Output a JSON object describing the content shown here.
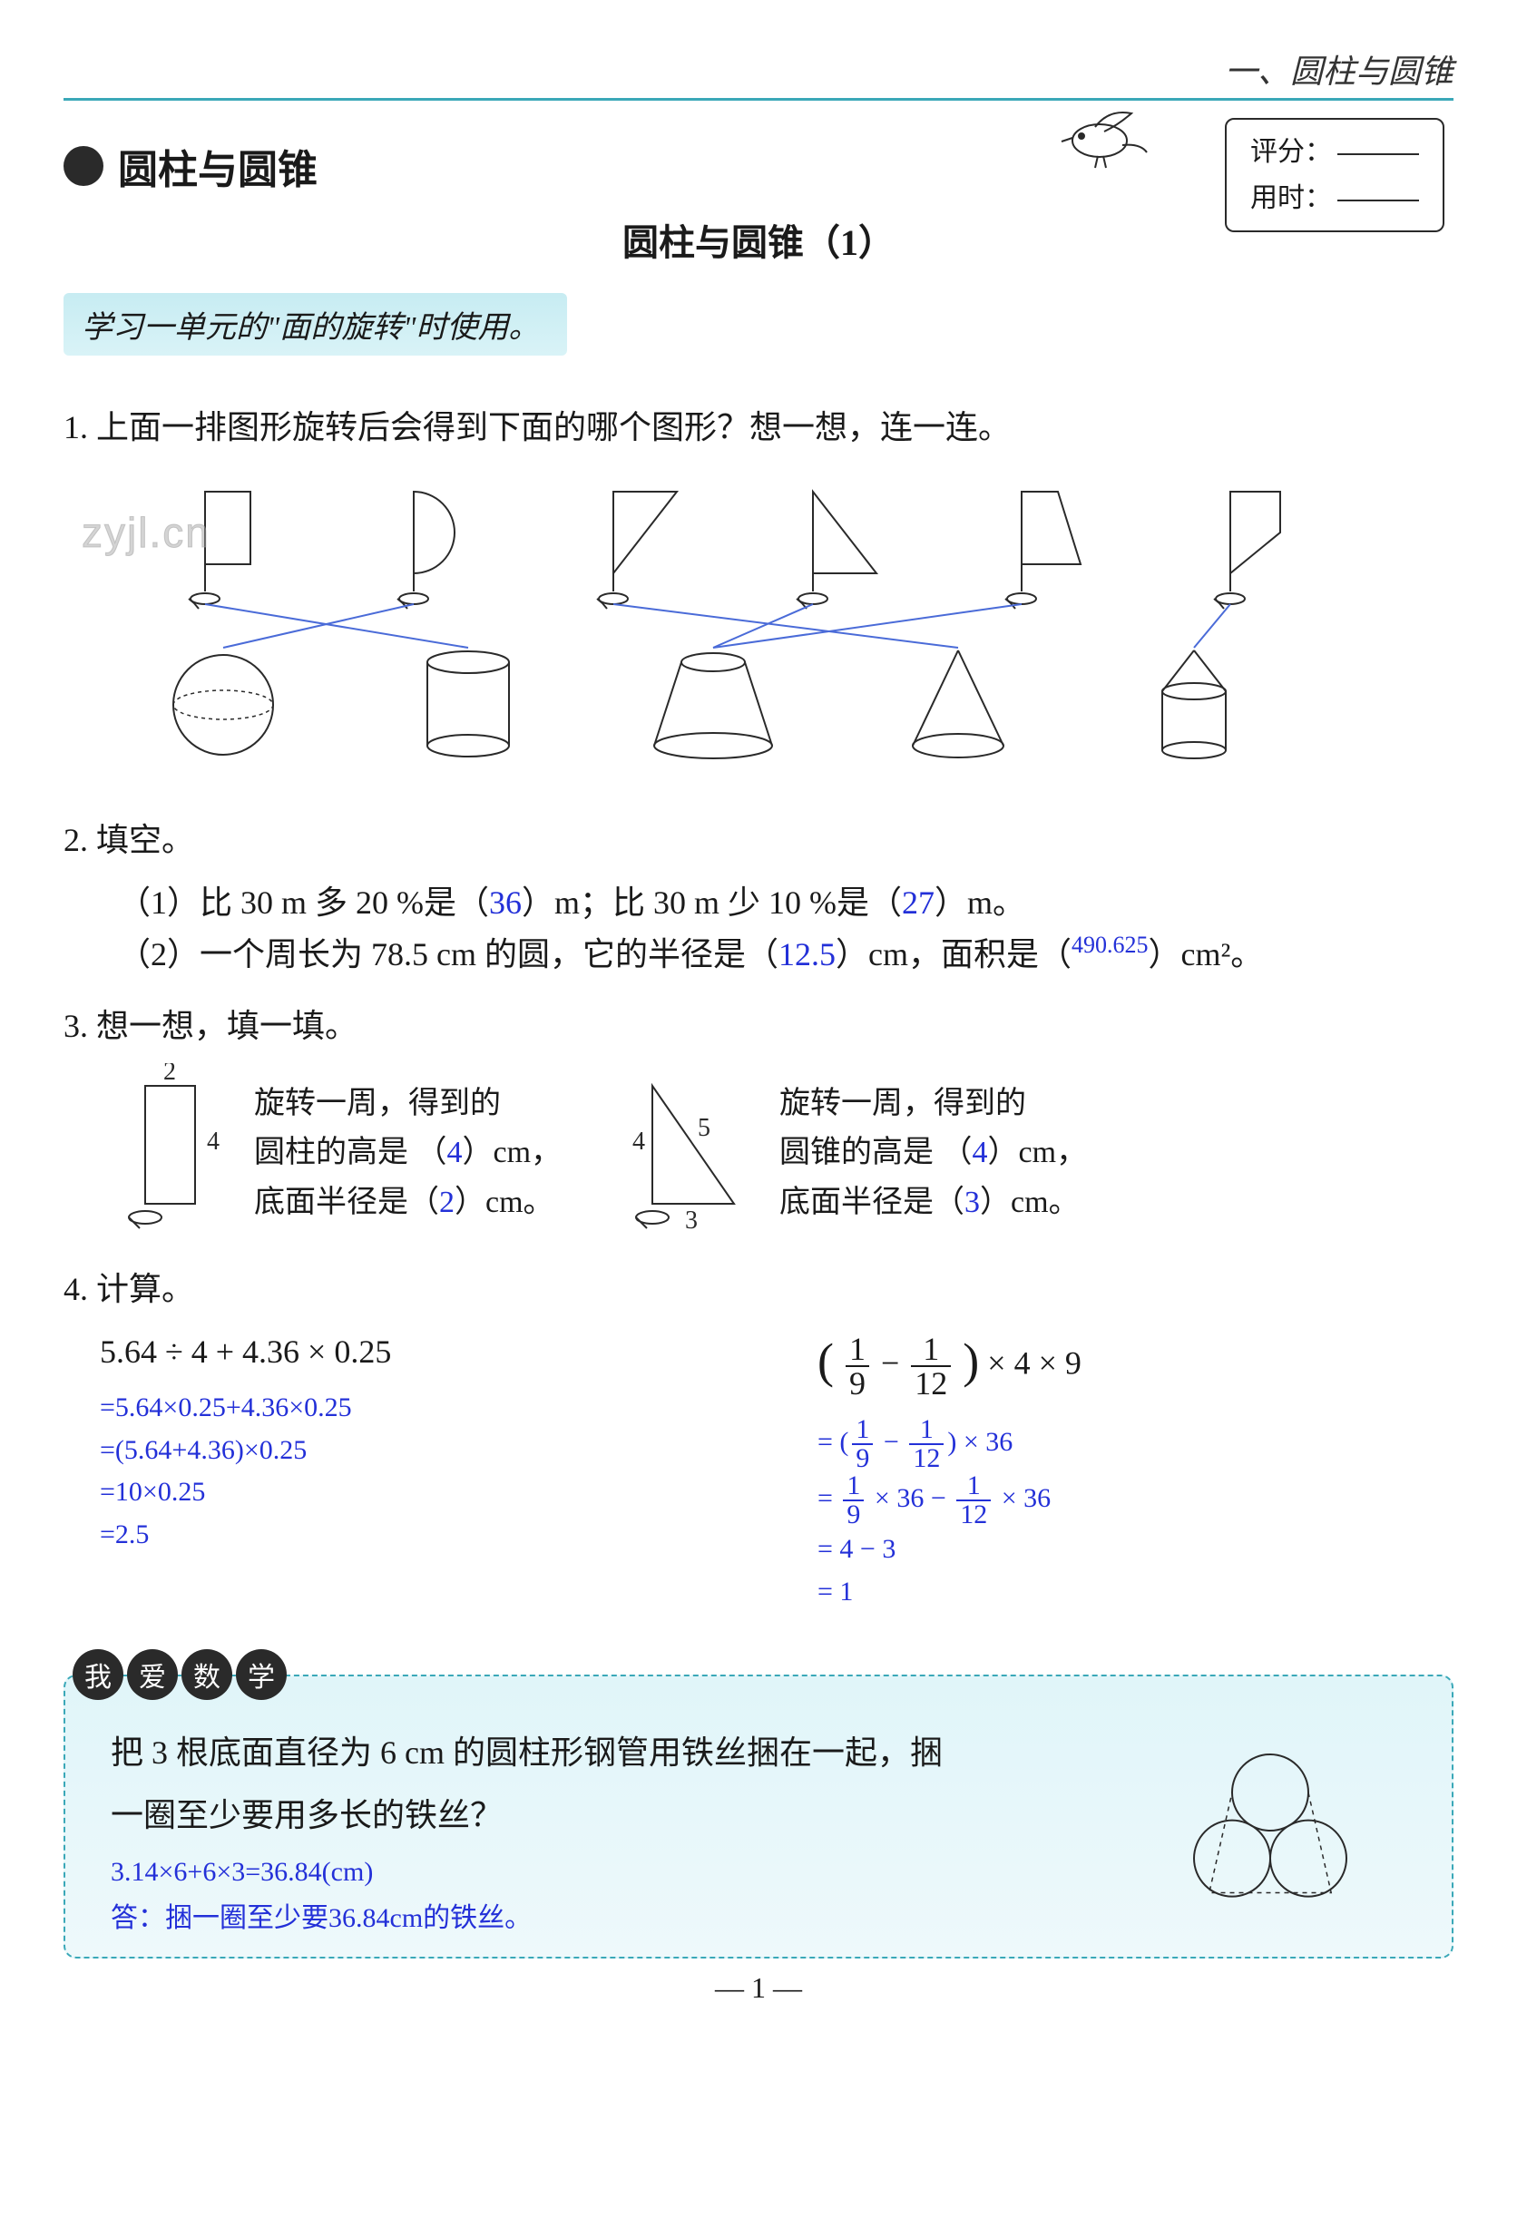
{
  "header": {
    "running": "一、圆柱与圆锥"
  },
  "chapter": {
    "title": "圆柱与圆锥"
  },
  "subtitle": "圆柱与圆锥（1）",
  "scorebox": {
    "score_label": "评分：",
    "time_label": "用时："
  },
  "tip": "学习一单元的\"面的旋转\"时使用。",
  "q1": {
    "text": "1. 上面一排图形旋转后会得到下面的哪个图形？想一想，连一连。"
  },
  "watermark": "zyjl.cn",
  "diagram1": {
    "top_count": 6,
    "bottom_count": 5,
    "stroke": "#2a2a2a",
    "line_color": "#4a6bd8",
    "connections": [
      {
        "from": 0,
        "to": 1
      },
      {
        "from": 1,
        "to": 0
      },
      {
        "from": 2,
        "to": 3
      },
      {
        "from": 3,
        "to": 2
      },
      {
        "from": 4,
        "to": 2
      },
      {
        "from": 5,
        "to": 4
      }
    ]
  },
  "q2": {
    "title": "2. 填空。",
    "line1_a": "（1）比 30 m 多 20 %是（",
    "ans1a": "36",
    "line1_b": "）m；比 30 m 少 10 %是（",
    "ans1b": "27",
    "line1_c": "）m。",
    "line2_a": "（2）一个周长为 78.5 cm 的圆，它的半径是（",
    "ans2a": "12.5",
    "line2_b": "）cm，面积是（",
    "ans2b": "490.625",
    "line2_c": "）cm²。"
  },
  "q3": {
    "title": "3. 想一想，填一填。",
    "rect": {
      "w": "2",
      "h": "4"
    },
    "left_text_a": "旋转一周，得到的",
    "left_text_b": "圆柱的高是 （",
    "left_ans_h": "4",
    "left_text_c": "）cm，",
    "left_text_d": "底面半径是（",
    "left_ans_r": "2",
    "left_text_e": "）cm。",
    "tri": {
      "h": "4",
      "b": "3",
      "hyp": "5"
    },
    "right_text_a": "旋转一周，得到的",
    "right_text_b": "圆锥的高是 （",
    "right_ans_h": "4",
    "right_text_c": "）cm，",
    "right_text_d": "底面半径是（",
    "right_ans_r": "3",
    "right_text_e": "）cm。"
  },
  "q4": {
    "title": "4. 计算。",
    "left": {
      "expr": "5.64 ÷ 4 + 4.36 × 0.25",
      "steps": [
        "=5.64×0.25+4.36×0.25",
        "=(5.64+4.36)×0.25",
        "=10×0.25",
        "=2.5"
      ]
    },
    "right": {
      "f1n": "1",
      "f1d": "9",
      "f2n": "1",
      "f2d": "12",
      "tail": " × 4 × 9",
      "s1_tail": " × 36",
      "s2_mid": " × 36 − ",
      "s2_tail": " × 36",
      "s3": "= 4 − 3",
      "s4": "= 1"
    }
  },
  "love": {
    "tag": [
      "我",
      "爱",
      "数",
      "学"
    ],
    "text": "把 3 根底面直径为 6 cm 的圆柱形钢管用铁丝捆在一起，捆一圈至少要用多长的铁丝？",
    "ans1": "3.14×6+6×3=36.84(cm)",
    "ans2": "答：捆一圈至少要36.84cm的铁丝。",
    "circle_r": 42
  },
  "pagenum": "— 1 —"
}
